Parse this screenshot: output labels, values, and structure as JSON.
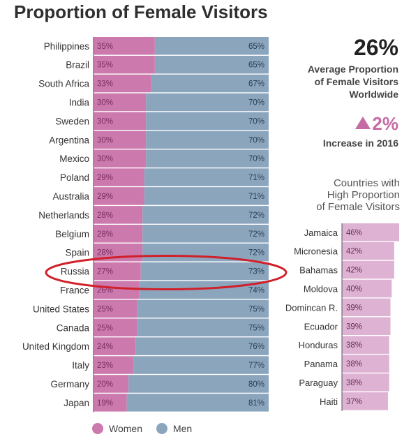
{
  "title": "Proportion of Female Visitors",
  "colors": {
    "women": "#cc79ad",
    "men": "#8ba5bd",
    "side_bar": "#deb2d3",
    "highlight": "#d0202a"
  },
  "chart_data": [
    {
      "type": "bar",
      "orientation": "horizontal",
      "stacked": true,
      "categories": [
        "Philippines",
        "Brazil",
        "South Africa",
        "India",
        "Sweden",
        "Argentina",
        "Mexico",
        "Poland",
        "Australia",
        "Netherlands",
        "Belgium",
        "Spain",
        "Russia",
        "France",
        "United States",
        "Canada",
        "United Kingdom",
        "Italy",
        "Germany",
        "Japan"
      ],
      "series": [
        {
          "name": "Women",
          "values": [
            35,
            35,
            33,
            30,
            30,
            30,
            30,
            29,
            29,
            28,
            28,
            28,
            27,
            26,
            25,
            25,
            24,
            23,
            20,
            19
          ]
        },
        {
          "name": "Men",
          "values": [
            65,
            65,
            67,
            70,
            70,
            70,
            70,
            71,
            71,
            72,
            72,
            72,
            73,
            74,
            75,
            75,
            76,
            77,
            80,
            81
          ]
        }
      ],
      "value_labels": {
        "women": [
          "35%",
          "35%",
          "33%",
          "30%",
          "30%",
          "30%",
          "30%",
          "29%",
          "29%",
          "28%",
          "28%",
          "28%",
          "27%",
          "26%",
          "25%",
          "25%",
          "24%",
          "23%",
          "20%",
          "19%"
        ],
        "men": [
          "65%",
          "65%",
          "67%",
          "70%",
          "70%",
          "70%",
          "70%",
          "71%",
          "71%",
          "72%",
          "72%",
          "72%",
          "73%",
          "74%",
          "75%",
          "75%",
          "76%",
          "77%",
          "80%",
          "81%"
        ]
      },
      "xlim": [
        0,
        100
      ],
      "highlighted_category": "Russia",
      "legend": {
        "position": "bottom",
        "entries": [
          "Women",
          "Men"
        ]
      }
    },
    {
      "type": "bar",
      "orientation": "horizontal",
      "title_lines": [
        "Countries with",
        "High Proportion",
        "of Female Visitors"
      ],
      "categories": [
        "Jamaica",
        "Micronesia",
        "Bahamas",
        "Moldova",
        "Domincan R.",
        "Ecuador",
        "Honduras",
        "Panama",
        "Paraguay",
        "Haiti"
      ],
      "values": [
        46,
        42,
        42,
        40,
        39,
        39,
        38,
        38,
        38,
        37
      ],
      "value_labels": [
        "46%",
        "42%",
        "42%",
        "40%",
        "39%",
        "39%",
        "38%",
        "38%",
        "38%",
        "37%"
      ]
    }
  ],
  "stats": {
    "average_value": "26%",
    "average_caption": [
      "Average Proportion",
      "of Female Visitors",
      "Worldwide"
    ],
    "change_value": "2%",
    "change_caption": "Increase in 2016"
  }
}
